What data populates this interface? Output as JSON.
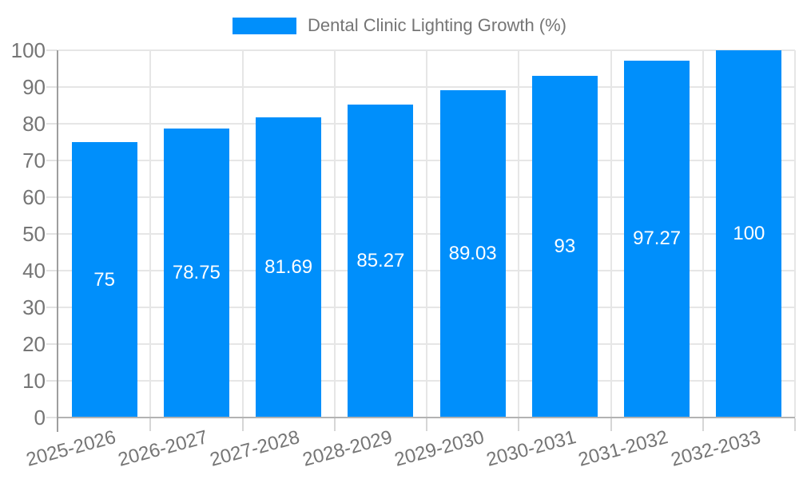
{
  "chart_data": {
    "type": "bar",
    "title": "Dental Clinic Lighting Growth (%)",
    "legend": {
      "label": "Dental Clinic Lighting Growth (%)",
      "position": "top",
      "marker": "rect"
    },
    "categories": [
      "2025-2026",
      "2026-2027",
      "2027-2028",
      "2028-2029",
      "2029-2030",
      "2030-2031",
      "2031-2032",
      "2032-2033"
    ],
    "values": [
      75,
      78.75,
      81.69,
      85.27,
      89.03,
      93,
      97.27,
      100
    ],
    "value_labels": [
      "75",
      "78.75",
      "81.69",
      "85.27",
      "89.03",
      "93",
      "97.27",
      "100"
    ],
    "xlabel": "",
    "ylabel": "",
    "ylim": [
      0,
      100
    ],
    "y_ticks": [
      0,
      10,
      20,
      30,
      40,
      50,
      60,
      70,
      80,
      90,
      100
    ],
    "grid": true,
    "legend_position": "top",
    "colors": {
      "bar": "#008FFB",
      "value_label": "#ffffff",
      "axis_text": "#757575",
      "legend_text": "#757575",
      "grid": "#e6e6e6",
      "axis_line": "#9e9e9e",
      "baseline": "#b3b3b3",
      "background": "#ffffff"
    }
  }
}
